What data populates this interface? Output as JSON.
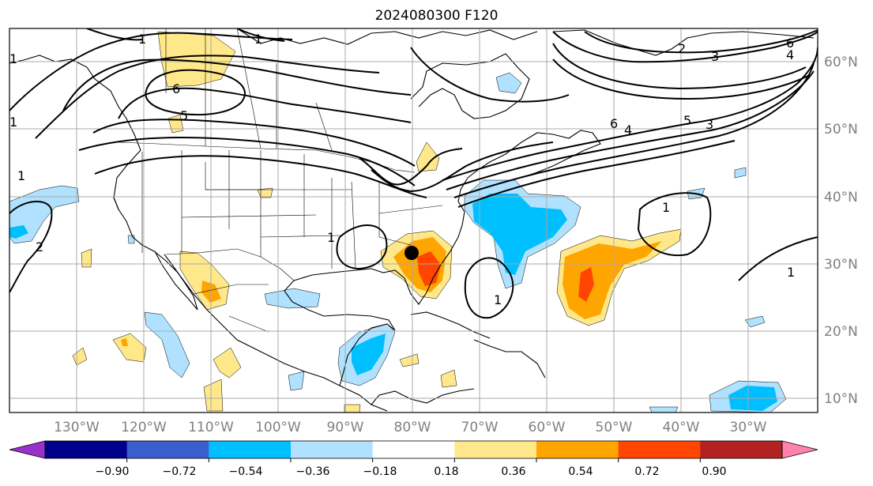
{
  "title": "2024080300 F120",
  "longitude_labels": [
    "130°W",
    "120°W",
    "110°W",
    "100°W",
    "90°W",
    "80°W",
    "70°W",
    "60°W",
    "50°W",
    "40°W",
    "30°W"
  ],
  "latitude_labels": [
    "60°N",
    "50°N",
    "40°N",
    "30°N",
    "20°N",
    "10°N"
  ],
  "contour_labels": [
    "1",
    "1",
    "1",
    "1",
    "1",
    "1",
    "1",
    "1",
    "1",
    "2",
    "2",
    "3",
    "3",
    "4",
    "4",
    "5",
    "5",
    "6",
    "6",
    "6"
  ],
  "colorbar": {
    "ticks": [
      "−0.90",
      "−0.72",
      "−0.54",
      "−0.36",
      "−0.18",
      "0.18",
      "0.36",
      "0.54",
      "0.72",
      "0.90"
    ],
    "colors": [
      "#9932cc",
      "#00008b",
      "#3a5fcd",
      "#00bfff",
      "#b0e2ff",
      "#ffffff",
      "#ffe88a",
      "#ffa500",
      "#ff4500",
      "#b22222",
      "#ff82ab"
    ],
    "extend": "both"
  },
  "colors": {
    "contour": "#000000",
    "grid": "#a9a9a9",
    "marker": "#000000"
  }
}
